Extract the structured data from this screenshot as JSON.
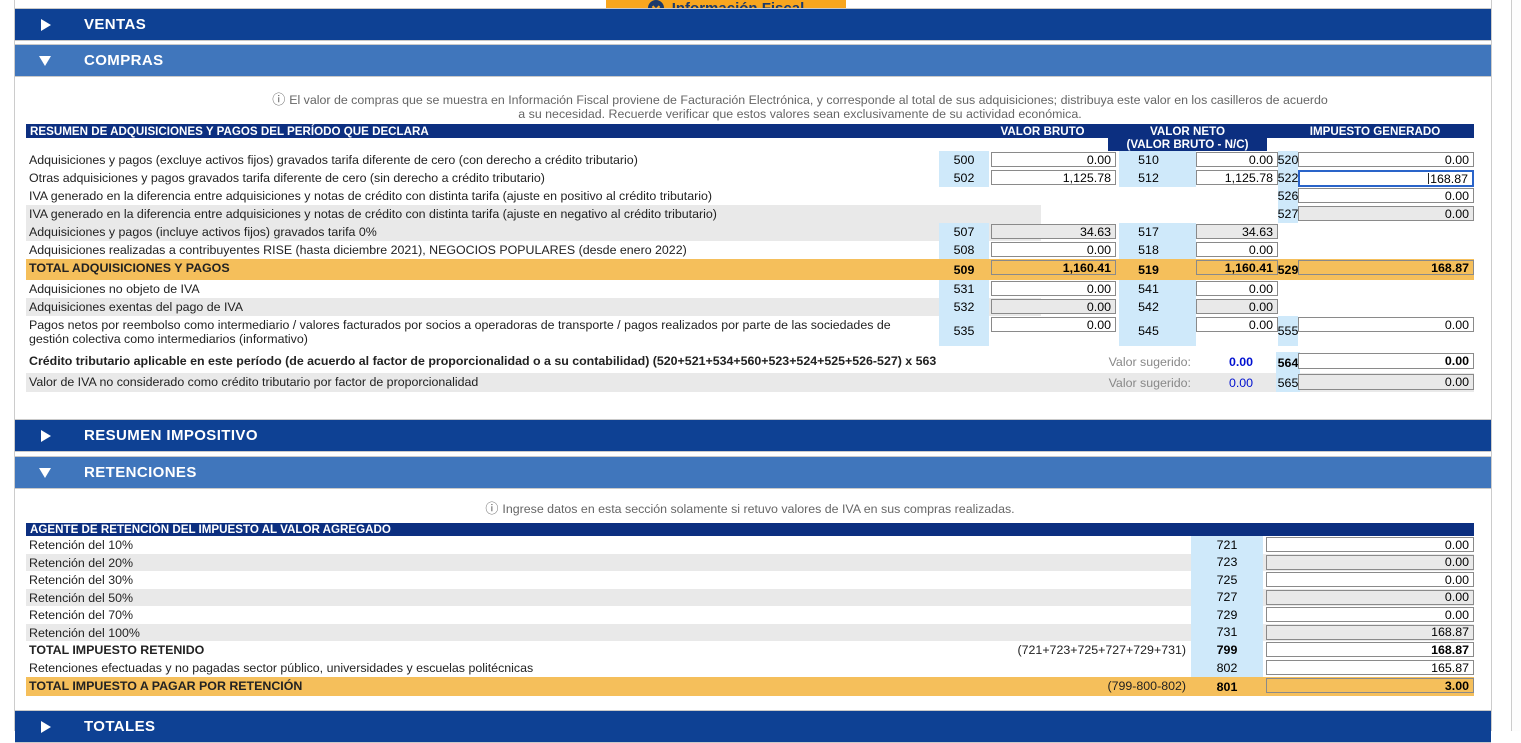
{
  "colors": {
    "bar_dark": "#0e4194",
    "bar_light": "#4076bc",
    "header_navy": "#0c2f80",
    "code_blue": "#cfe9fa",
    "row_gray": "#e9e9e9",
    "total_orange": "#f5bf5b",
    "button_orange": "#f9a61e",
    "navy_text": "#1b3a6b",
    "suggested_blue": "#0010d0",
    "focus_blue": "#2a64c9"
  },
  "toolbar": {
    "info_fiscal_label": "Información Fiscal"
  },
  "sections": [
    {
      "label": "VENTAS",
      "expanded": false
    },
    {
      "label": "COMPRAS",
      "expanded": true
    },
    {
      "label": "RESUMEN IMPOSITIVO",
      "expanded": false
    },
    {
      "label": "RETENCIONES",
      "expanded": true
    },
    {
      "label": "TOTALES",
      "expanded": false
    }
  ],
  "compras": {
    "info_line1": "El valor de compras que se muestra en Información Fiscal proviene de Facturación Electrónica, y corresponde al total de sus adquisiciones; distribuya este valor en los casilleros de acuerdo",
    "info_line2": "a su necesidad. Recuerde verificar que estos valores sean exclusivamente de su actividad económica.",
    "table": {
      "title": "RESUMEN DE ADQUISICIONES Y PAGOS DEL PERÍODO QUE DECLARA",
      "col_valor_bruto": "VALOR BRUTO",
      "col_valor_neto": "VALOR NETO",
      "col_valor_neto_sub": "(VALOR BRUTO - N/C)",
      "col_impuesto_generado": "IMPUESTO GENERADO",
      "rows": [
        {
          "label": "Adquisiciones y pagos (excluye activos fijos) gravados tarifa diferente de cero (con derecho a crédito tributario)",
          "bg": "white",
          "code1": "500",
          "val1": "0.00",
          "code2": "510",
          "val2": "0.00",
          "code3": "520",
          "val3": "0.00"
        },
        {
          "label": "Otras adquisiciones y pagos gravados tarifa diferente de cero (sin derecho a crédito tributario)",
          "bg": "white",
          "code1": "502",
          "val1": "1,125.78",
          "code2": "512",
          "val2": "1,125.78",
          "code3": "522",
          "val3": "168.87",
          "focus3": true
        },
        {
          "label": "IVA generado en la diferencia entre adquisiciones y notas de crédito con distinta tarifa (ajuste en positivo al crédito tributario)",
          "bg": "white",
          "code3": "526",
          "val3": "0.00"
        },
        {
          "label": "IVA generado en la diferencia entre adquisiciones y notas de crédito con distinta tarifa (ajuste en negativo al crédito tributario)",
          "bg": "gray",
          "code3": "527",
          "val3": "0.00"
        },
        {
          "label": "Adquisiciones y pagos (incluye activos fijos) gravados tarifa 0%",
          "bg": "gray",
          "code1": "507",
          "val1": "34.63",
          "code2": "517",
          "val2": "34.63"
        },
        {
          "label": "Adquisiciones realizadas a contribuyentes RISE (hasta diciembre 2021), NEGOCIOS POPULARES (desde enero 2022)",
          "bg": "white",
          "code1": "508",
          "val1": "0.00",
          "code2": "518",
          "val2": "0.00"
        },
        {
          "label": "TOTAL ADQUISICIONES Y PAGOS",
          "bg": "orange",
          "bold": true,
          "code1": "509",
          "val1": "1,160.41",
          "code2": "519",
          "val2": "1,160.41",
          "code3": "529",
          "val3": "168.87"
        },
        {
          "label": "Adquisiciones no objeto de IVA",
          "bg": "white",
          "code1": "531",
          "val1": "0.00",
          "code2": "541",
          "val2": "0.00"
        },
        {
          "label": "Adquisiciones exentas del pago de IVA",
          "bg": "gray",
          "code1": "532",
          "val1": "0.00",
          "code2": "542",
          "val2": "0.00"
        },
        {
          "label": "Pagos netos por reembolso como intermediario / valores facturados por socios a operadoras de transporte / pagos realizados por parte de las sociedades de gestión colectiva como intermediarios (informativo)",
          "bg": "white",
          "tall": true,
          "code1": "535",
          "val1": "0.00",
          "code2": "545",
          "val2": "0.00",
          "code3": "555",
          "val3": "0.00"
        }
      ]
    },
    "credito": {
      "rows": [
        {
          "label": "Crédito tributario aplicable en este período (de acuerdo al factor de proporcionalidad o a su contabilidad) (520+521+534+560+523+524+525+526-527) x 563",
          "bold": true,
          "suggested_label": "Valor sugerido:",
          "suggested_value": "0.00",
          "code": "564",
          "value": "0.00",
          "bg": "white"
        },
        {
          "label": "Valor de IVA no considerado como crédito tributario por factor de proporcionalidad",
          "bold": false,
          "suggested_label": "Valor sugerido:",
          "suggested_value": "0.00",
          "code": "565",
          "value": "0.00",
          "bg": "gray"
        }
      ]
    }
  },
  "retenciones": {
    "info_line": "Ingrese datos en esta sección solamente si retuvo valores de IVA en sus compras realizadas.",
    "table": {
      "title": "AGENTE DE RETENCIÓN DEL IMPUESTO AL VALOR AGREGADO",
      "rows": [
        {
          "label": "Retención del 10%",
          "bg": "white",
          "code": "721",
          "value": "0.00"
        },
        {
          "label": "Retención del 20%",
          "bg": "gray",
          "code": "723",
          "value": "0.00"
        },
        {
          "label": "Retención del 30%",
          "bg": "white",
          "code": "725",
          "value": "0.00"
        },
        {
          "label": "Retención del 50%",
          "bg": "gray",
          "code": "727",
          "value": "0.00"
        },
        {
          "label": "Retención del 70%",
          "bg": "white",
          "code": "729",
          "value": "0.00"
        },
        {
          "label": "Retención del 100%",
          "bg": "gray",
          "code": "731",
          "value": "168.87"
        },
        {
          "label": "TOTAL IMPUESTO RETENIDO",
          "bg": "white",
          "bold": true,
          "formula": "(721+723+725+727+729+731)",
          "code": "799",
          "value": "168.87"
        },
        {
          "label": "Retenciones efectuadas y no pagadas sector público, universidades y escuelas politécnicas",
          "bg": "white",
          "code": "802",
          "value": "165.87"
        },
        {
          "label": "TOTAL IMPUESTO A PAGAR POR RETENCIÓN",
          "bg": "orange",
          "bold": true,
          "formula": "(799-800-802)",
          "code": "801",
          "value": "3.00"
        }
      ]
    }
  }
}
